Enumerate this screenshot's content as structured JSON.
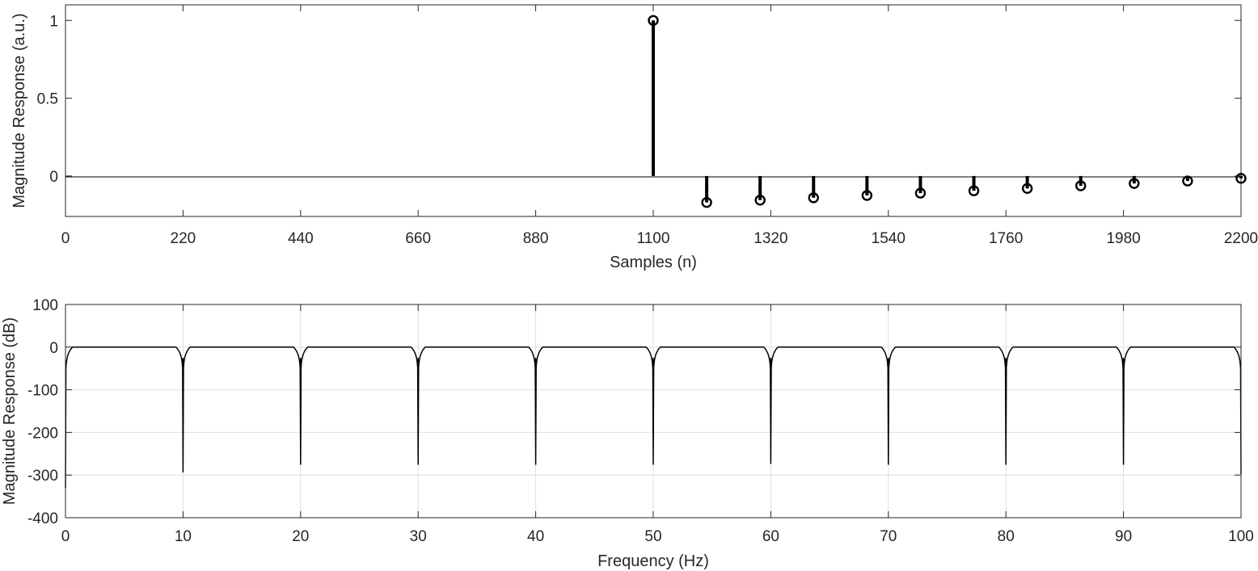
{
  "chart_data": [
    {
      "type": "stem",
      "xlabel": "Samples (n)",
      "ylabel": "Magnitude Response (a.u.)",
      "xlim": [
        0,
        2200
      ],
      "ylim": [
        -0.26,
        1.1
      ],
      "xticks": [
        0,
        220,
        440,
        660,
        880,
        1100,
        1320,
        1540,
        1760,
        1980,
        2200
      ],
      "xtick_labels": [
        "0",
        "220",
        "440",
        "660",
        "880",
        "1100",
        "1320",
        "1540",
        "1760",
        "1980",
        "2200"
      ],
      "yticks": [
        0,
        0.5,
        1
      ],
      "ytick_labels": [
        "0",
        "0.5",
        "1"
      ],
      "grid": false,
      "x": [
        1100,
        1200,
        1300,
        1400,
        1500,
        1600,
        1700,
        1800,
        1900,
        2000,
        2100,
        2200
      ],
      "y": [
        1.0,
        -0.17,
        -0.155,
        -0.14,
        -0.125,
        -0.11,
        -0.095,
        -0.08,
        -0.063,
        -0.048,
        -0.032,
        -0.015
      ]
    },
    {
      "type": "line",
      "xlabel": "Frequency (Hz)",
      "ylabel": "Magnitude Response (dB)",
      "xlim": [
        0,
        100
      ],
      "ylim": [
        -400,
        100
      ],
      "xticks": [
        0,
        10,
        20,
        30,
        40,
        50,
        60,
        70,
        80,
        90,
        100
      ],
      "xtick_labels": [
        "0",
        "10",
        "20",
        "30",
        "40",
        "50",
        "60",
        "70",
        "80",
        "90",
        "100"
      ],
      "yticks": [
        -400,
        -300,
        -200,
        -100,
        0,
        100
      ],
      "ytick_labels": [
        "-400",
        "-300",
        "-200",
        "-100",
        "0",
        "100"
      ],
      "grid": true,
      "passband_db": 0,
      "notch_frequencies": [
        0,
        10,
        20,
        30,
        40,
        50,
        60,
        70,
        80,
        90,
        100
      ],
      "notch_depths_db": [
        -330,
        -294,
        -276,
        -276,
        -276,
        -276,
        -274,
        -276,
        -276,
        -276,
        -298
      ]
    }
  ]
}
